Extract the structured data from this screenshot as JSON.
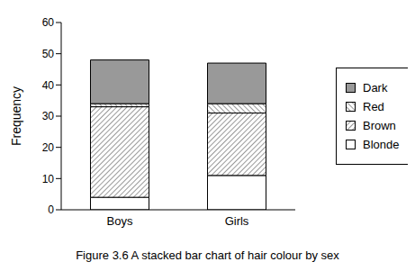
{
  "chart_data": {
    "type": "bar",
    "title": "Figure 3.6 A stacked bar chart of hair colour by sex",
    "y_label": "Frequency",
    "categories": [
      "Boys",
      "Girls"
    ],
    "series": [
      {
        "name": "Blonde",
        "color": "#ffffff",
        "values": [
          4,
          11
        ]
      },
      {
        "name": "Brown",
        "color": "#ffffff",
        "values": [
          29,
          20
        ]
      },
      {
        "name": "Red",
        "color": "#ffffff",
        "values": [
          1,
          3
        ]
      },
      {
        "name": "Dark",
        "color": "#999999",
        "values": [
          14,
          13
        ]
      }
    ],
    "stacked": true,
    "ylim": [
      0,
      60
    ],
    "yticks": [
      0,
      10,
      20,
      30,
      40,
      50,
      60
    ],
    "legend": "right",
    "grid": false
  }
}
